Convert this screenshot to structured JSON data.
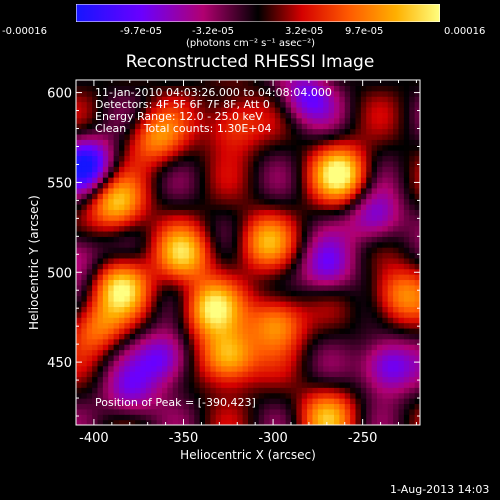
{
  "colorbar": {
    "tick_labels": [
      "-0.00016",
      "-9.7e-05",
      "-3.2e-05",
      "3.2e-05",
      "9.7e-05",
      "0.00016"
    ],
    "unit_label": "(photons cm⁻² s⁻¹ asec⁻²)",
    "range": [
      -0.00016,
      0.00016
    ],
    "colors": [
      "#1515ff",
      "#6a00ff",
      "#b10070",
      "#000000",
      "#d40000",
      "#ff5a00",
      "#ffb000",
      "#ffff80"
    ]
  },
  "title": "Reconstructed RHESSI Image",
  "overlay": {
    "line1": "11-Jan-2010 04:03:26.000 to 04:08:04.000",
    "line2": "Detectors: 4F 5F 6F 7F 8F, Att 0",
    "line3": "Energy Range: 12.0 - 25.0 keV",
    "line4": "Clean     Total counts: 1.30E+04",
    "peak": "Position of Peak = [-390,423]"
  },
  "footer_date": "1-Aug-2013 14:03",
  "chart_data": {
    "type": "heatmap",
    "title": "Reconstructed RHESSI Image",
    "xlabel": "Heliocentric X (arcsec)",
    "ylabel": "Heliocentric Y (arcsec)",
    "xlim": [
      -410,
      -218
    ],
    "ylim": [
      415,
      607
    ],
    "x_ticks": [
      -400,
      -350,
      -300,
      -250
    ],
    "y_ticks": [
      450,
      500,
      550,
      600
    ],
    "colorbar_range": [
      -0.00016,
      0.00016
    ],
    "peak_position": [
      -390,
      423
    ],
    "blobs": [
      {
        "x": -325,
        "y": 453,
        "value": 0.00016
      },
      {
        "x": -335,
        "y": 480,
        "value": 0.00014
      },
      {
        "x": -385,
        "y": 492,
        "value": 0.00013
      },
      {
        "x": -350,
        "y": 510,
        "value": 0.00012
      },
      {
        "x": -262,
        "y": 555,
        "value": 0.00015
      },
      {
        "x": -388,
        "y": 538,
        "value": 0.00013
      },
      {
        "x": -298,
        "y": 473,
        "value": 0.00012
      },
      {
        "x": -230,
        "y": 487,
        "value": 0.00011
      },
      {
        "x": -305,
        "y": 517,
        "value": 0.0001
      },
      {
        "x": -365,
        "y": 575,
        "value": 0.0001
      },
      {
        "x": -322,
        "y": 583,
        "value": 9e-05
      },
      {
        "x": -398,
        "y": 470,
        "value": 9e-05
      },
      {
        "x": -270,
        "y": 420,
        "value": 0.0001
      },
      {
        "x": -404,
        "y": 560,
        "value": -0.00015
      },
      {
        "x": -360,
        "y": 452,
        "value": -0.00012
      },
      {
        "x": -243,
        "y": 530,
        "value": -0.0001
      },
      {
        "x": -236,
        "y": 448,
        "value": -0.00013
      },
      {
        "x": -270,
        "y": 502,
        "value": -9e-05
      },
      {
        "x": -282,
        "y": 598,
        "value": -0.0001
      },
      {
        "x": -380,
        "y": 432,
        "value": -8e-05
      },
      {
        "x": -410,
        "y": 510,
        "value": -8e-05
      }
    ]
  }
}
